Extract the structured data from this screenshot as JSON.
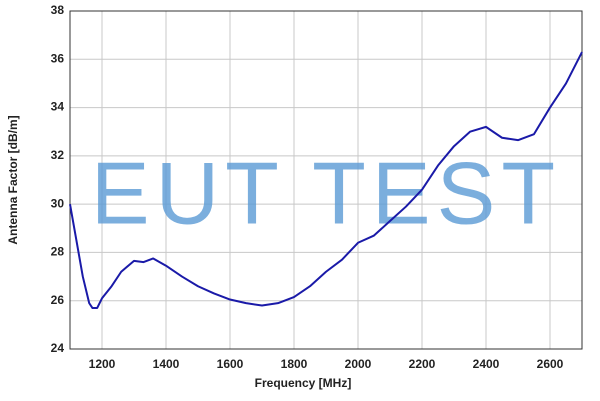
{
  "chart_data": {
    "type": "line",
    "xlabel": "Frequency [MHz]",
    "ylabel": "Antenna Factor [dB/m]",
    "watermark": "EUT TEST",
    "x": [
      1100,
      1120,
      1140,
      1160,
      1170,
      1185,
      1200,
      1230,
      1260,
      1300,
      1330,
      1360,
      1400,
      1450,
      1500,
      1550,
      1600,
      1650,
      1700,
      1750,
      1800,
      1850,
      1900,
      1950,
      2000,
      2050,
      2100,
      2150,
      2200,
      2250,
      2300,
      2350,
      2400,
      2450,
      2500,
      2550,
      2600,
      2650,
      2700
    ],
    "series": [
      {
        "color": "#1a1aa8",
        "values": [
          30.0,
          28.5,
          27.0,
          25.9,
          25.7,
          25.7,
          26.1,
          26.6,
          27.2,
          27.65,
          27.6,
          27.75,
          27.45,
          27.0,
          26.6,
          26.3,
          26.05,
          25.9,
          25.8,
          25.9,
          26.15,
          26.6,
          27.2,
          27.7,
          28.4,
          28.7,
          29.3,
          29.9,
          30.6,
          31.6,
          32.4,
          33.0,
          33.2,
          32.75,
          32.65,
          32.9,
          34.0,
          35.0,
          36.3
        ]
      }
    ],
    "xlim": [
      1100,
      2700
    ],
    "xticks": [
      1200,
      1400,
      1600,
      1800,
      2000,
      2200,
      2400,
      2600
    ],
    "ylim": [
      24,
      38
    ],
    "yticks": [
      24,
      26,
      28,
      30,
      32,
      34,
      36,
      38
    ],
    "grid": true
  }
}
